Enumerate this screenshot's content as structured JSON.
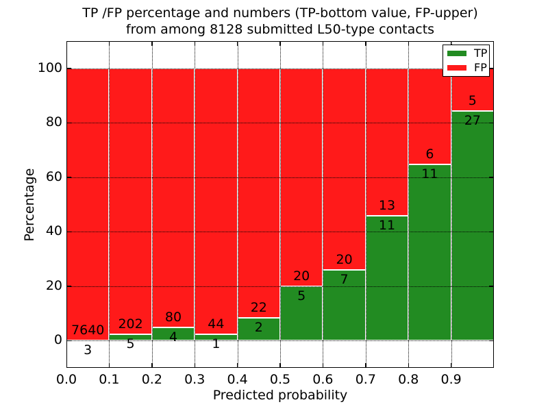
{
  "title": {
    "line1": "TP /FP percentage and numbers (TP-bottom value, FP-upper)",
    "line2": "from among 8128 submitted L50-type contacts"
  },
  "chart_data": {
    "type": "bar",
    "stacked": true,
    "title": "TP /FP percentage and numbers (TP-bottom value, FP-upper) from among 8128 submitted L50-type contacts",
    "xlabel": "Predicted probability",
    "ylabel": "Percentage",
    "x_tick_labels": [
      "0.0",
      "0.1",
      "0.2",
      "0.3",
      "0.4",
      "0.5",
      "0.6",
      "0.7",
      "0.8",
      "0.9"
    ],
    "y_ticks": [
      0,
      20,
      40,
      60,
      80,
      100
    ],
    "xlim": [
      0.0,
      1.0
    ],
    "ylim": [
      -10,
      110
    ],
    "bin_width": 0.1,
    "grid": "dotted, drawn over bars",
    "legend": {
      "position": "upper right",
      "entries": [
        "TP",
        "FP"
      ]
    },
    "series": [
      {
        "name": "TP",
        "color": "#228b22",
        "counts": [
          3,
          5,
          4,
          1,
          2,
          5,
          7,
          11,
          11,
          27
        ]
      },
      {
        "name": "FP",
        "color": "#ff1a1a",
        "counts": [
          7640,
          202,
          80,
          44,
          22,
          20,
          20,
          13,
          6,
          5
        ]
      }
    ],
    "tp_percent_of_bin": [
      0.04,
      2.42,
      4.76,
      2.22,
      8.33,
      20.0,
      25.93,
      45.83,
      64.71,
      84.38
    ],
    "bars_total_percent": 100
  }
}
